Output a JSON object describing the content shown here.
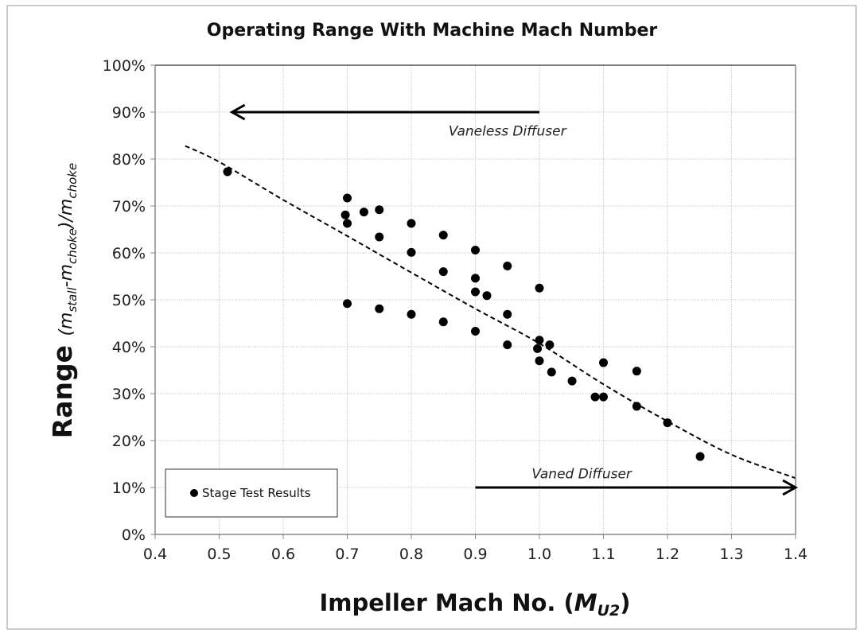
{
  "chart_data": {
    "type": "scatter",
    "title": "Operating Range With Machine Mach Number",
    "xlabel": {
      "main": "Impeller Mach No. (",
      "var": "M",
      "sub": "U2",
      "close": ")"
    },
    "ylabel": {
      "main": "Range ",
      "p1": "(m",
      "s1": "stall",
      "p2": "-m",
      "s2": "choke",
      "p3": ")/m",
      "s3": "choke"
    },
    "xlim": [
      0.4,
      1.4
    ],
    "ylim": [
      0,
      100
    ],
    "xticks": [
      "0.4",
      "0.5",
      "0.6",
      "0.7",
      "0.8",
      "0.9",
      "1.0",
      "1.1",
      "1.2",
      "1.3",
      "1.4"
    ],
    "yticks": [
      "0%",
      "10%",
      "20%",
      "30%",
      "40%",
      "50%",
      "60%",
      "70%",
      "80%",
      "90%",
      "100%"
    ],
    "grid": true,
    "legend": {
      "position": "bottom-left",
      "entries": [
        "Stage Test Results"
      ]
    },
    "series": [
      {
        "name": "Stage Test Results",
        "marker": "circle",
        "color": "#000000",
        "x": [
          0.513,
          0.7,
          0.697,
          0.7,
          0.726,
          0.75,
          0.75,
          0.8,
          0.8,
          0.85,
          0.85,
          0.9,
          0.9,
          0.9,
          0.918,
          0.95,
          0.95,
          0.9,
          0.95,
          0.7,
          0.75,
          0.8,
          0.85,
          1.0,
          1.0,
          0.997,
          1.016,
          1.0,
          1.019,
          1.051,
          1.087,
          1.1,
          1.1,
          1.152,
          1.152,
          1.2,
          1.251
        ],
        "y": [
          77.3,
          71.7,
          68.1,
          66.3,
          68.7,
          69.2,
          63.4,
          66.3,
          60.1,
          63.8,
          56.0,
          60.6,
          54.6,
          51.7,
          50.9,
          57.2,
          46.9,
          43.3,
          40.4,
          49.2,
          48.1,
          46.9,
          45.3,
          52.5,
          41.4,
          39.6,
          40.4,
          37.0,
          34.6,
          32.7,
          29.3,
          29.3,
          36.6,
          34.8,
          27.3,
          23.8,
          16.6
        ]
      },
      {
        "name": "Trend",
        "style": "dashed",
        "color": "#000000",
        "x": [
          0.447,
          0.5,
          0.6,
          0.7,
          0.8,
          0.9,
          1.0,
          1.1,
          1.2,
          1.3,
          1.4
        ],
        "y": [
          82.8,
          79.4,
          71.3,
          63.6,
          55.8,
          48.1,
          40.7,
          32.0,
          24.1,
          17.0,
          12.0
        ]
      }
    ],
    "annotations": [
      {
        "text": "Vaneless Diffuser",
        "x": 0.95,
        "y": 86,
        "arrow_from": [
          1.0,
          90
        ],
        "arrow_to": [
          0.52,
          90
        ]
      },
      {
        "text": "Vaned Diffuser",
        "x": 1.066,
        "y": 13,
        "arrow_from": [
          0.9,
          10
        ],
        "arrow_to": [
          1.4,
          10
        ]
      }
    ]
  }
}
